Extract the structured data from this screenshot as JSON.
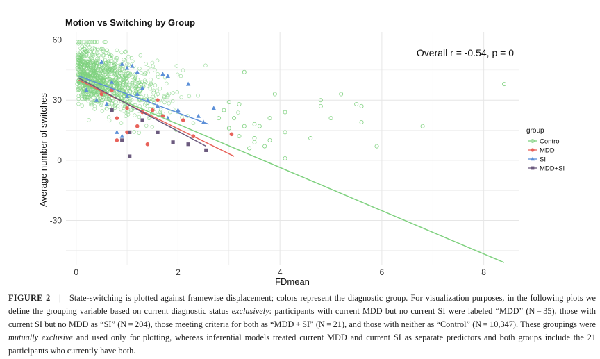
{
  "chart_data": {
    "type": "scatter",
    "title": "Motion vs Switching by Group",
    "xlabel": "FDmean",
    "ylabel": "Average number of switches",
    "xlim": [
      -0.2,
      8.7
    ],
    "ylim": [
      -52,
      64
    ],
    "x_ticks": [
      0,
      2,
      4,
      6,
      8
    ],
    "y_ticks": [
      60,
      30,
      0,
      -30
    ],
    "grid": true,
    "annotation": "Overall r = -0.54, p = 0",
    "legend": {
      "title": "group",
      "position": "right",
      "entries": [
        "Control",
        "MDD",
        "SI",
        "MDD+SI"
      ]
    },
    "series": [
      {
        "name": "Control",
        "color": "#7fd17f",
        "marker": "open-circle",
        "fit": {
          "x": [
            0.05,
            8.4
          ],
          "y": [
            39,
            -51
          ]
        },
        "points": [
          [
            4.1,
            24
          ],
          [
            4.8,
            30
          ],
          [
            4.8,
            27
          ],
          [
            4.6,
            11
          ],
          [
            5.0,
            21
          ],
          [
            5.2,
            33
          ],
          [
            5.5,
            28
          ],
          [
            5.6,
            27
          ],
          [
            5.6,
            19
          ],
          [
            5.9,
            7
          ],
          [
            6.8,
            17
          ],
          [
            8.4,
            38
          ],
          [
            4.1,
            14
          ],
          [
            4.1,
            1
          ],
          [
            3.8,
            21
          ],
          [
            3.5,
            11
          ],
          [
            3.4,
            6
          ],
          [
            3.1,
            21
          ],
          [
            3.7,
            7
          ],
          [
            3.3,
            44
          ],
          [
            3.9,
            33
          ],
          [
            3.5,
            9
          ],
          [
            3.6,
            17
          ],
          [
            3.2,
            28
          ],
          [
            3.0,
            29
          ],
          [
            2.9,
            25
          ],
          [
            3.0,
            16
          ],
          [
            2.8,
            21
          ],
          [
            3.3,
            17
          ],
          [
            3.8,
            10
          ],
          [
            3.5,
            18
          ],
          [
            3.2,
            12
          ]
        ]
      },
      {
        "name": "MDD",
        "color": "#e8625a",
        "marker": "circle",
        "fit": {
          "x": [
            0.05,
            3.1
          ],
          "y": [
            40,
            2
          ]
        },
        "points": [
          [
            0.7,
            35
          ],
          [
            1.0,
            26
          ],
          [
            1.5,
            25
          ],
          [
            0.8,
            21
          ],
          [
            1.6,
            30
          ],
          [
            1.2,
            17
          ],
          [
            0.8,
            10
          ],
          [
            3.05,
            13
          ],
          [
            1.4,
            8
          ],
          [
            2.1,
            20
          ],
          [
            1.0,
            14
          ],
          [
            0.5,
            33
          ],
          [
            1.7,
            22
          ],
          [
            2.3,
            12
          ],
          [
            1.3,
            24
          ]
        ]
      },
      {
        "name": "SI",
        "color": "#5b8fd8",
        "marker": "triangle",
        "fit": {
          "x": [
            0.05,
            2.6
          ],
          "y": [
            42,
            18
          ]
        },
        "points": [
          [
            0.5,
            49
          ],
          [
            0.9,
            48
          ],
          [
            1.0,
            46
          ],
          [
            1.1,
            47
          ],
          [
            1.2,
            44
          ],
          [
            1.7,
            43
          ],
          [
            1.8,
            42
          ],
          [
            0.7,
            39
          ],
          [
            0.2,
            35
          ],
          [
            1.3,
            36
          ],
          [
            2.2,
            38
          ],
          [
            2.7,
            26
          ],
          [
            1.4,
            30
          ],
          [
            0.8,
            14
          ],
          [
            1.0,
            32
          ],
          [
            1.6,
            27
          ],
          [
            2.0,
            25
          ],
          [
            0.4,
            30
          ],
          [
            1.8,
            21
          ],
          [
            2.4,
            22
          ],
          [
            0.6,
            28
          ],
          [
            1.2,
            33
          ],
          [
            2.5,
            19
          ],
          [
            0.9,
            12
          ]
        ]
      },
      {
        "name": "MDD+SI",
        "color": "#6b5a7e",
        "marker": "square",
        "fit": {
          "x": [
            0.05,
            2.55
          ],
          "y": [
            41,
            7
          ]
        },
        "points": [
          [
            1.05,
            2
          ],
          [
            1.05,
            14
          ],
          [
            1.6,
            14
          ],
          [
            2.55,
            5
          ],
          [
            0.9,
            10
          ],
          [
            1.3,
            20
          ],
          [
            1.9,
            9
          ],
          [
            2.2,
            8
          ],
          [
            0.7,
            25
          ]
        ]
      }
    ],
    "control_cloud": {
      "note": "dense cloud of Control participants",
      "x_center": 0.45,
      "y_center": 35,
      "count": 1100
    }
  },
  "caption": {
    "figure_label": "FIGURE 2",
    "sep": "|",
    "t1": "State-switching is plotted against framewise displacement; colors represent the diagnostic group. For visualization purposes, in the following plots we define the grouping variable based on current diagnostic status ",
    "t2": "exclusively",
    "t3": ": participants with current MDD but no current SI were labeled “MDD” (N = 35), those with current SI but no MDD as “SI” (N = 204), those meeting criteria for both as “MDD + SI” (N = 21), and those with neither as “Control” (N = 10,347). These groupings were ",
    "t4": "mutually exclusive",
    "t5": " and used only for plotting, whereas inferential models treated current MDD and current SI as separate predictors and both groups include the 21 participants who currently have both."
  }
}
